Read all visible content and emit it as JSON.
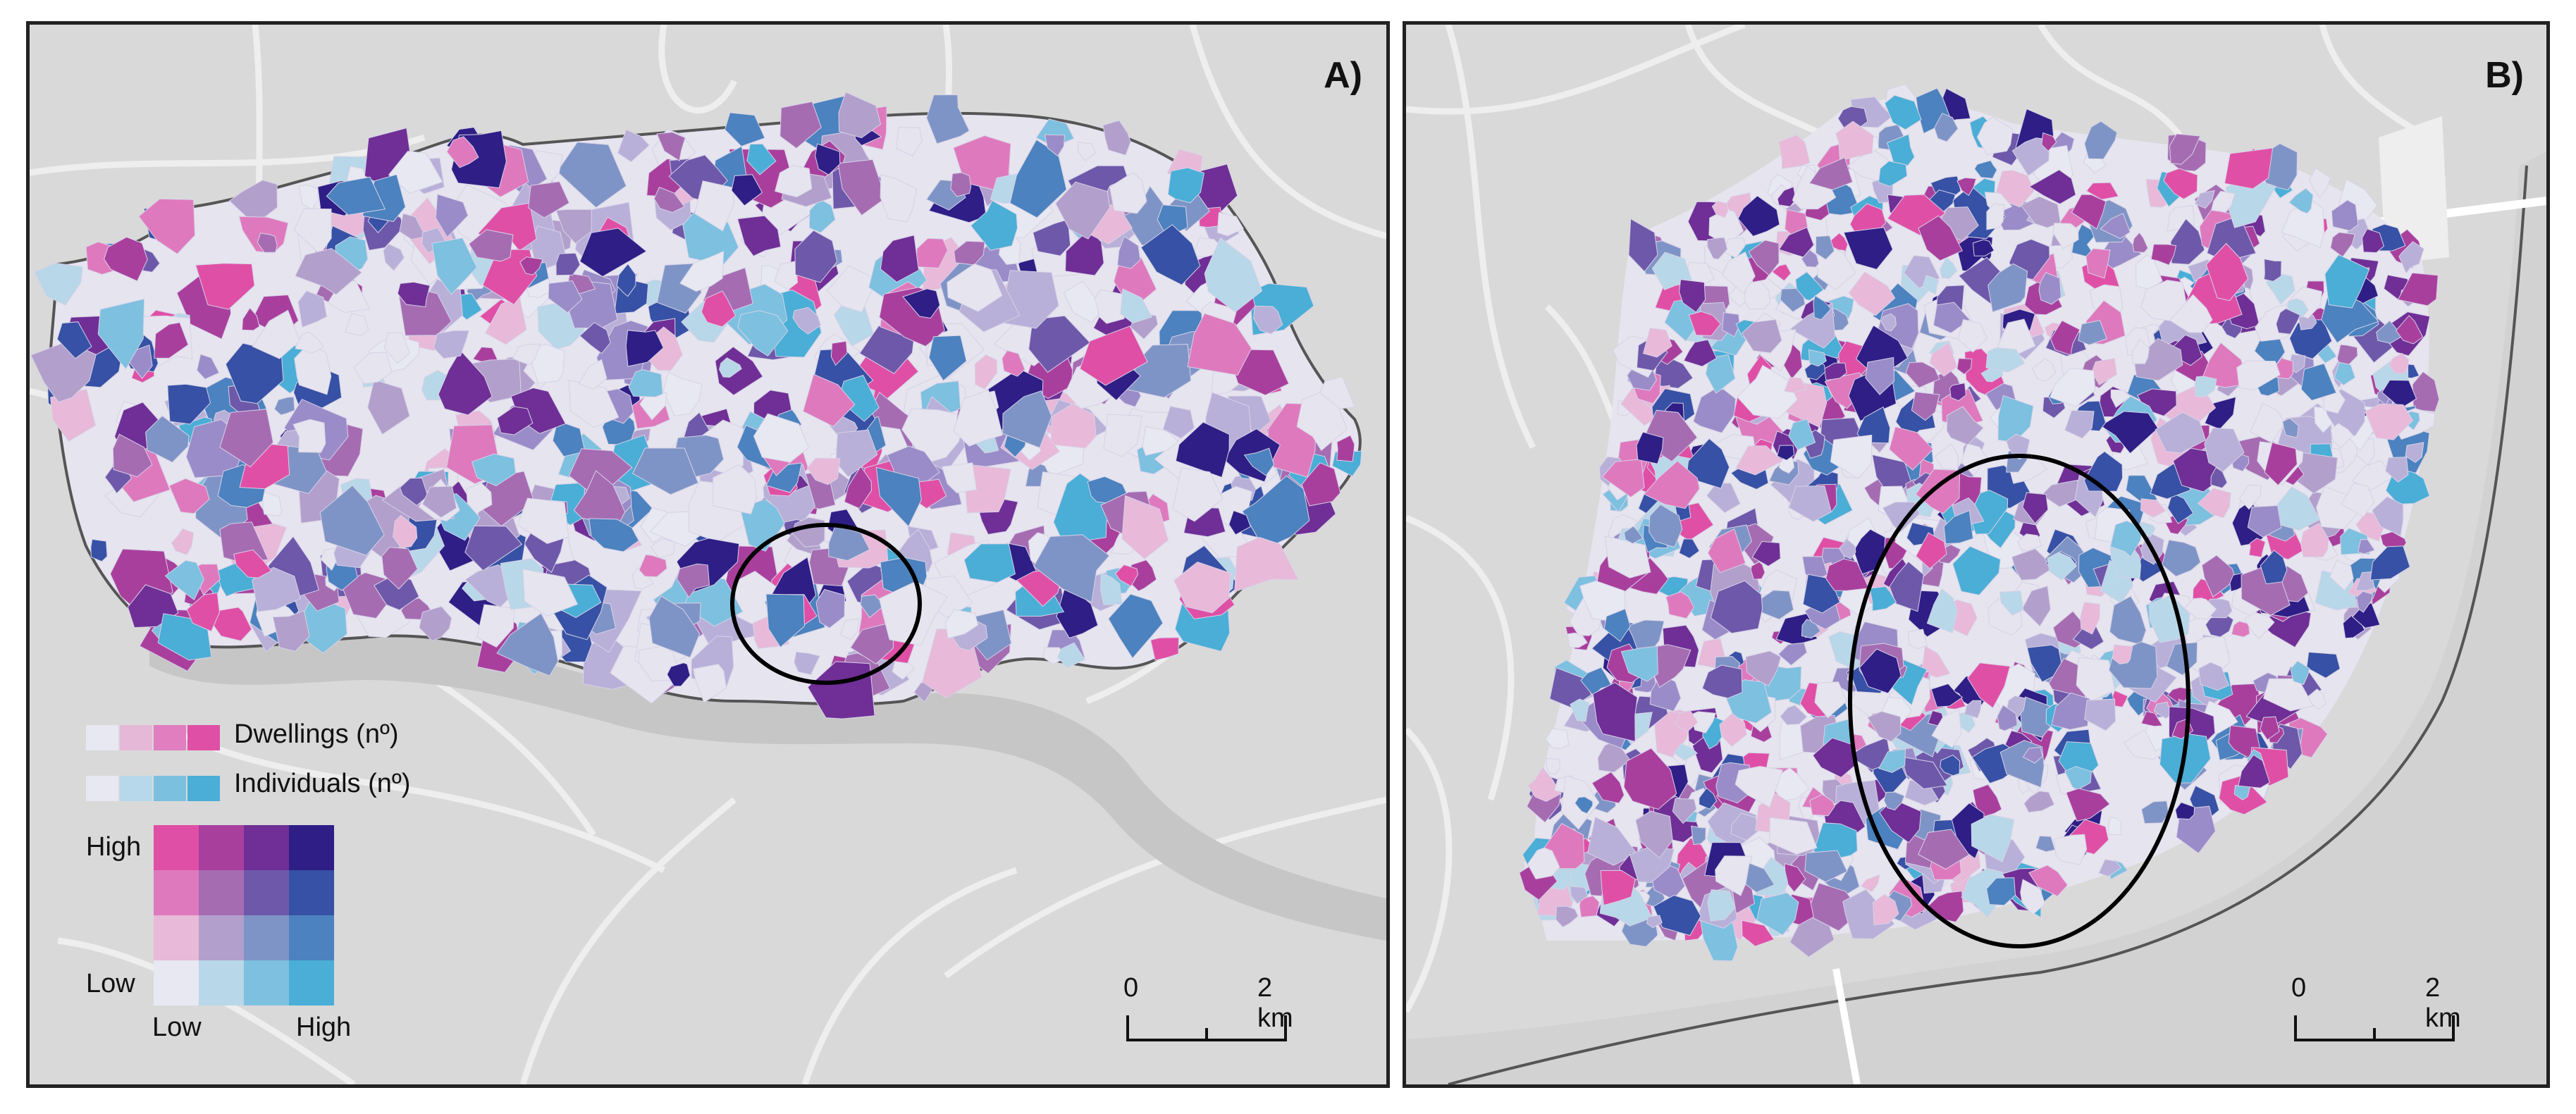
{
  "panels": [
    {
      "label": "A)",
      "scale": {
        "start": "0",
        "end": "2 km"
      }
    },
    {
      "label": "B)",
      "scale": {
        "start": "0",
        "end": "2 km"
      }
    }
  ],
  "legend": {
    "dwellings_label": "Dwellings (nº)",
    "individuals_label": "Individuals (nº)",
    "y_high": "High",
    "y_low": "Low",
    "x_low": "Low",
    "x_high": "High",
    "dwellings_colors": [
      "#e8e8f2",
      "#e6b8d8",
      "#e07ec0",
      "#e04fa6"
    ],
    "individuals_colors": [
      "#e8e8f2",
      "#b6d8ea",
      "#7cc0e0",
      "#4aaed6"
    ],
    "matrix": [
      [
        "#e04fa6",
        "#a93f9d",
        "#6f2f96",
        "#2e1e86"
      ],
      [
        "#df79bd",
        "#a66cb2",
        "#6e58aa",
        "#3651a5"
      ],
      [
        "#e8b9d9",
        "#b29fcc",
        "#7f94c6",
        "#4b82bf"
      ],
      [
        "#e8e8f2",
        "#b8d7e9",
        "#7dc0e0",
        "#4aaed6"
      ]
    ]
  },
  "map_colors": {
    "background": "#d9d9d9",
    "roads": "#ececec",
    "river": "#c6c6c6",
    "city_base": "#e6e4ef",
    "outline": "#555555",
    "highlight_ellipse": "#000000"
  }
}
